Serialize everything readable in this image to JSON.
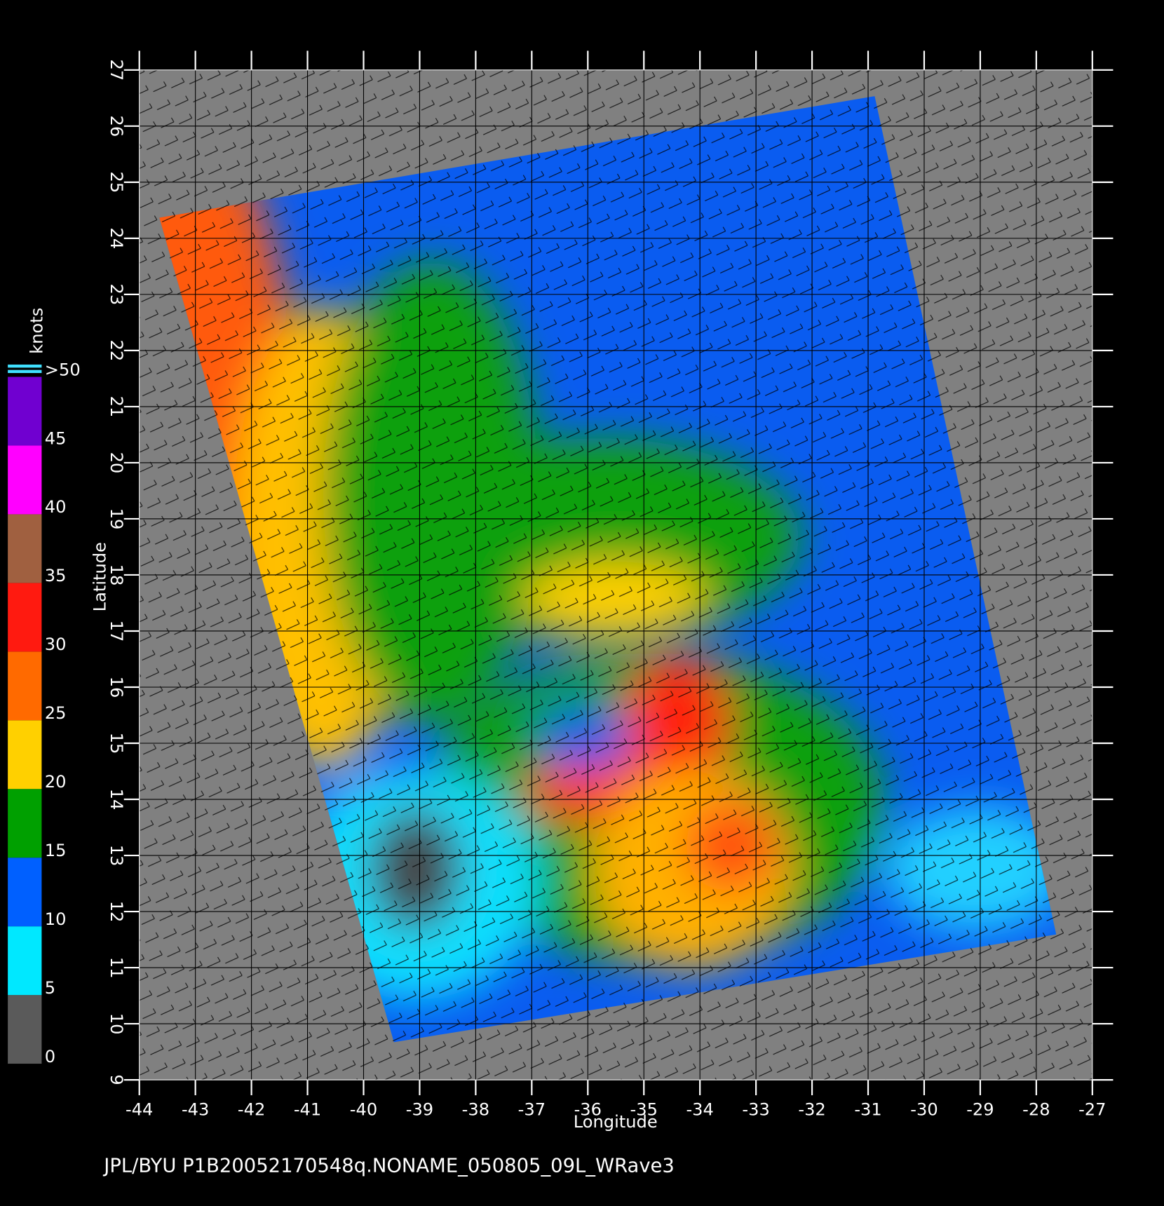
{
  "map": {
    "x_label": "Longitude",
    "y_label": "Latitude",
    "xlim": [
      -44,
      -27
    ],
    "ylim": [
      9,
      27
    ],
    "xticks": [
      -44,
      -43,
      -42,
      -41,
      -40,
      -39,
      -38,
      -37,
      -36,
      -35,
      -34,
      -33,
      -32,
      -31,
      -30,
      -29,
      -28,
      -27
    ],
    "yticks": [
      9,
      10,
      11,
      12,
      13,
      14,
      15,
      16,
      17,
      18,
      19,
      20,
      21,
      22,
      23,
      24,
      25,
      26,
      27
    ],
    "colorbar": {
      "title": "knots",
      "ticks": [
        0,
        5,
        10,
        15,
        20,
        25,
        30,
        35,
        40,
        45,
        {
          "value": 50,
          "label": ">50"
        }
      ],
      "colors": [
        "#5a5a5a",
        "#00e8ff",
        "#0060ff",
        "#00a000",
        "#ffd000",
        "#ff6a00",
        "#ff1a10",
        "#a06040",
        "#ff00ff",
        "#7000d0"
      ]
    },
    "footer": "JPL/BYU  P1B20052170548q.NONAME_050805_09L_WRave3"
  }
}
